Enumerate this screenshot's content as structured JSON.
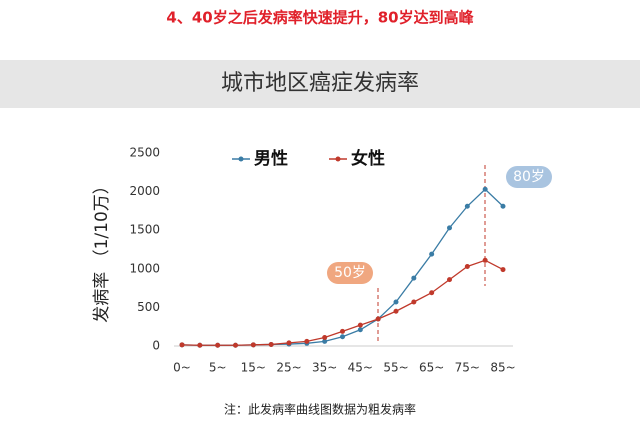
{
  "heading": "4、40岁之后发病率快速提升，80岁达到高峰",
  "chart_data": {
    "type": "line",
    "title": "城市地区癌症发病率",
    "y_label": "发病率 （1/10万）",
    "categories": [
      "0~",
      null,
      "5~",
      null,
      "15~",
      null,
      "25~",
      null,
      "35~",
      null,
      "45~",
      null,
      "55~",
      null,
      "65~",
      null,
      "75~",
      null,
      "85~"
    ],
    "series": [
      {
        "name": "男性",
        "color": "#3a7ca5",
        "values": [
          15,
          10,
          10,
          10,
          15,
          20,
          25,
          35,
          60,
          120,
          210,
          350,
          570,
          880,
          1190,
          1530,
          1810,
          2030,
          1810
        ]
      },
      {
        "name": "女性",
        "color": "#c0392b",
        "values": [
          15,
          10,
          10,
          10,
          15,
          20,
          40,
          60,
          110,
          190,
          270,
          350,
          450,
          570,
          690,
          860,
          1030,
          1110,
          990
        ]
      }
    ],
    "ylim": [
      0,
      2500
    ],
    "yticks": [
      0,
      500,
      1000,
      1500,
      2000,
      2500
    ],
    "annotations": [
      "50岁",
      "80岁"
    ],
    "note": "注：此发病率曲线图数据为粗发病率"
  }
}
